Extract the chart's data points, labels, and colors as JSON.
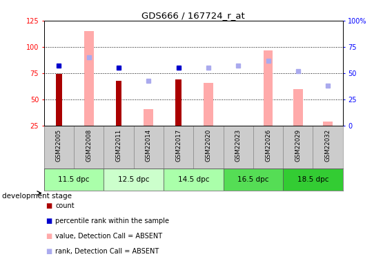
{
  "title": "GDS666 / 167724_r_at",
  "samples": [
    "GSM22005",
    "GSM22008",
    "GSM22011",
    "GSM22014",
    "GSM22017",
    "GSM22020",
    "GSM22023",
    "GSM22026",
    "GSM22029",
    "GSM22032"
  ],
  "count_values": [
    74,
    null,
    68,
    null,
    69,
    null,
    null,
    null,
    null,
    null
  ],
  "pink_bar_values": [
    null,
    115,
    null,
    41,
    null,
    66,
    null,
    97,
    60,
    29
  ],
  "blue_square_left": [
    82,
    null,
    80,
    null,
    80,
    null,
    null,
    null,
    null,
    null
  ],
  "light_blue_square_left": [
    null,
    90,
    null,
    68,
    null,
    80,
    82,
    87,
    77,
    63
  ],
  "ylim_left": [
    25,
    125
  ],
  "ylim_right": [
    0,
    100
  ],
  "left_ticks": [
    25,
    50,
    75,
    100,
    125
  ],
  "right_ticks": [
    0,
    25,
    50,
    75,
    100
  ],
  "left_tick_labels": [
    "25",
    "50",
    "75",
    "100",
    "125"
  ],
  "right_tick_labels": [
    "0",
    "25",
    "50",
    "75",
    "100%"
  ],
  "count_color": "#aa0000",
  "pink_bar_color": "#ffaaaa",
  "blue_sq_color": "#0000cc",
  "light_blue_sq_color": "#aaaaee",
  "sample_bg_color": "#cccccc",
  "dev_stages": [
    {
      "label": "11.5 dpc",
      "start": 0,
      "end": 2,
      "color": "#aaffaa"
    },
    {
      "label": "12.5 dpc",
      "start": 2,
      "end": 4,
      "color": "#ccffcc"
    },
    {
      "label": "14.5 dpc",
      "start": 4,
      "end": 6,
      "color": "#aaffaa"
    },
    {
      "label": "16.5 dpc",
      "start": 6,
      "end": 8,
      "color": "#55dd55"
    },
    {
      "label": "18.5 dpc",
      "start": 8,
      "end": 10,
      "color": "#33cc33"
    }
  ],
  "legend_items": [
    {
      "label": "count",
      "color": "#aa0000"
    },
    {
      "label": "percentile rank within the sample",
      "color": "#0000cc"
    },
    {
      "label": "value, Detection Call = ABSENT",
      "color": "#ffaaaa"
    },
    {
      "label": "rank, Detection Call = ABSENT",
      "color": "#aaaaee"
    }
  ]
}
